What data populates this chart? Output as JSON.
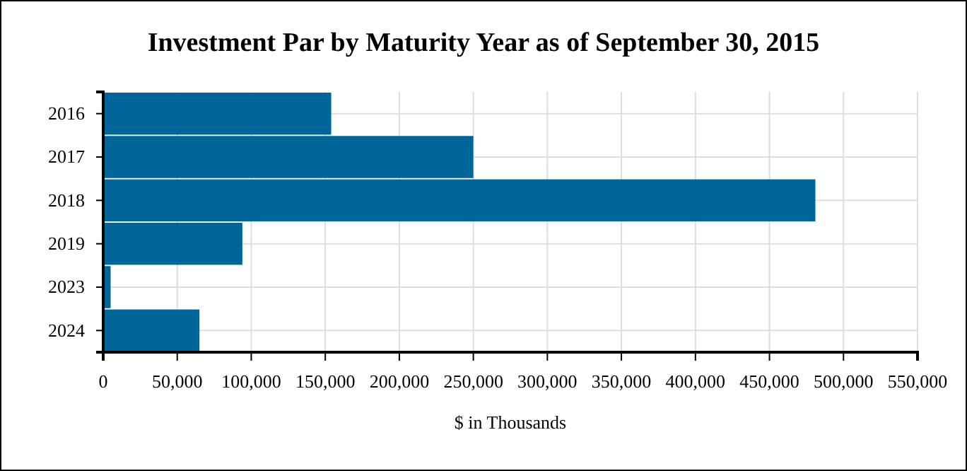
{
  "chart_data": {
    "type": "bar",
    "orientation": "horizontal",
    "title": "Investment Par by Maturity Year as of September 30, 2015",
    "xlabel": "$ in Thousands",
    "categories": [
      "2016",
      "2017",
      "2018",
      "2019",
      "2023",
      "2024"
    ],
    "values": [
      154000,
      250000,
      481000,
      94000,
      5000,
      65000
    ],
    "color": "#006699",
    "xlim": [
      0,
      550000
    ],
    "xticks": [
      0,
      {
        "value": 50000,
        "label": "50,000"
      },
      {
        "value": 100000,
        "label": "100,000"
      },
      {
        "value": 150000,
        "label": "150,000"
      },
      {
        "value": 200000,
        "label": "200,000"
      },
      {
        "value": 250000,
        "label": "250,000"
      },
      {
        "value": 300000,
        "label": "300,000"
      },
      {
        "value": 350000,
        "label": "350,000"
      },
      {
        "value": 400000,
        "label": "400,000"
      },
      {
        "value": 450000,
        "label": "450,000"
      },
      {
        "value": 500000,
        "label": "500,000"
      },
      {
        "value": 550000,
        "label": "550,000"
      }
    ],
    "grid": true
  }
}
